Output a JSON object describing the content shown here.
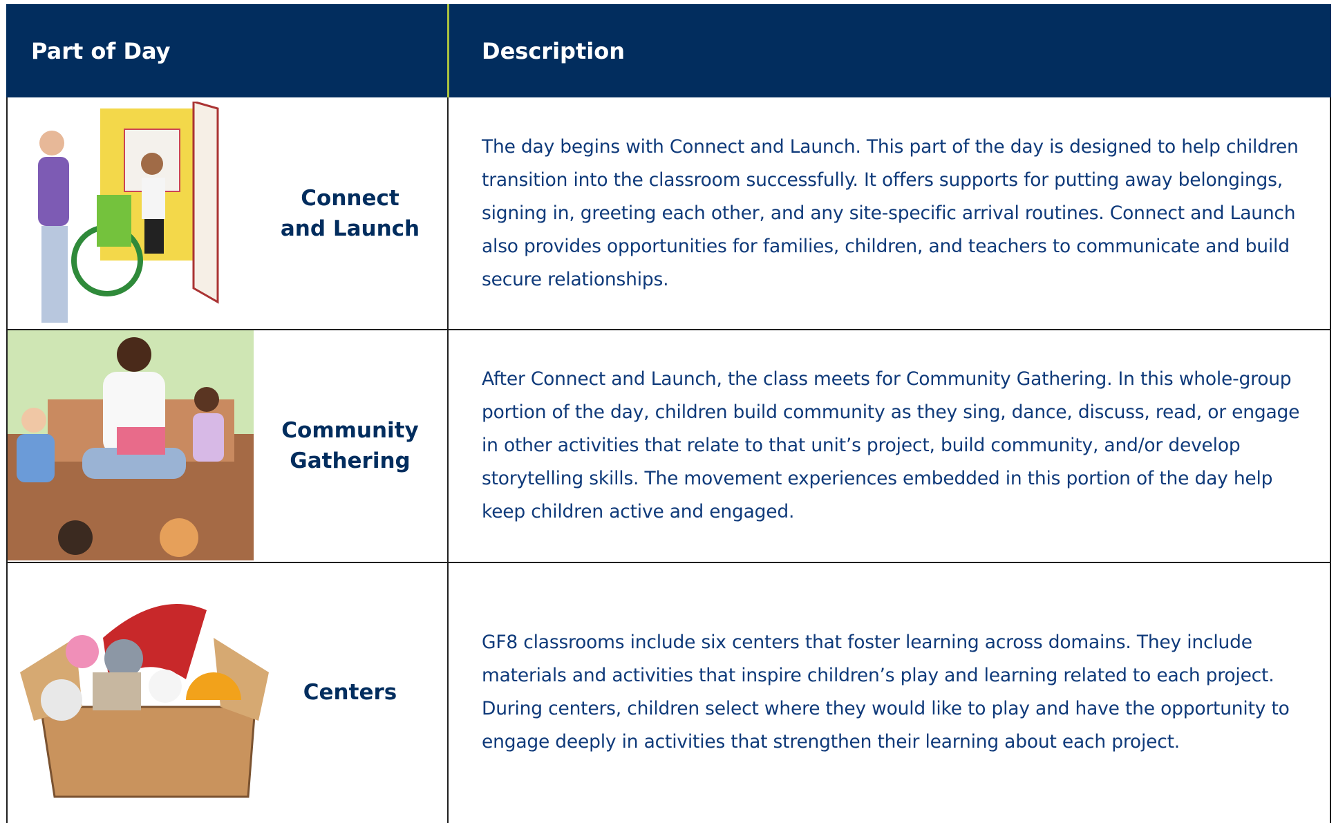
{
  "header": {
    "columns": [
      "Part of Day",
      "Description"
    ]
  },
  "table": {
    "rows": [
      {
        "part": "Connect and Launch",
        "description": "The day begins with Connect and Launch. This part of the day is designed to help children transition into the classroom successfully. It offers supports for putting away belongings, signing in, greeting each other, and any site-specific arrival routines. Connect and Launch also provides opportunities for families, children, and teachers to communicate and build secure relationships."
      },
      {
        "part": "Community Gathering",
        "description": "After Connect and Launch, the class meets for Community Gathering. In this whole-group portion of the day, children build community as they sing, dance, discuss, read, or engage in other activities that relate to that unit’s project, build community, and/or develop storytelling skills. The movement experiences embedded in this portion of the day help keep children active and engaged."
      },
      {
        "part": "Centers",
        "description": "GF8 classrooms include six centers that foster learning across domains. They include materials and activities that inspire children’s play and learning related to each project. During centers, children select where they would like to play and have the opportunity to engage deeply in activities that strengthen their learning about each project."
      }
    ]
  }
}
